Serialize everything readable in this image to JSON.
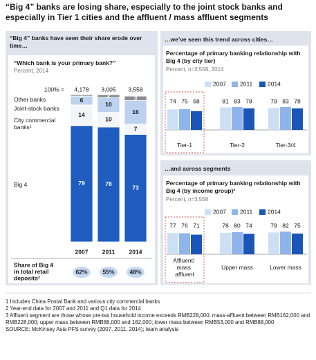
{
  "title": "“Big 4” banks are losing share, especially to the joint stock banks and especially in Tier 1 cities and the affluent / mass affluent segments",
  "panels": [
    "“Big 4” banks have seen their share erode over time…",
    "…we’ve seen this trend across cities…",
    "…and across segments"
  ],
  "footnotes": [
    "1 Includes China Postal Bank and various city commercial banks",
    "2 Year-end data for 2007 and 2011 and Q1 data for 2014",
    "3 Affluent segment are those whose pre-tax household income exceeds RMB228,000; mass-affluent between RMB162,000 and RMB228,000; upper mass between RMB88,000 and 162,000; lower mass between RMB53,000 and RMB88,000"
  ],
  "source": "SOURCE: McKinsey Asia PFS survey (2007, 2011, 2014); team analysis",
  "chart_data": [
    {
      "type": "stacked_bar",
      "title": "“Which bank is your primary bank?”",
      "subtitle": "Percent, 2014",
      "categories": [
        "2007",
        "2011",
        "2014"
      ],
      "ylim": [
        0,
        100
      ],
      "totals": {
        "label": "100% =",
        "values": [
          4178,
          3005,
          3558
        ],
        "value_labels": [
          "4,178",
          "3,005",
          "3,558"
        ]
      },
      "series": [
        {
          "name": "Big 4",
          "color": "#1f5cc0",
          "values": [
            79,
            78,
            73
          ]
        },
        {
          "name": "City commercial banks¹",
          "color": "#f3f5f8",
          "values": [
            14,
            10,
            7
          ]
        },
        {
          "name": "Joint-stock banks",
          "color": "#bcd2ef",
          "values": [
            6,
            10,
            16
          ]
        },
        {
          "name": "Other banks",
          "color": "#8a8d92",
          "values": [
            1,
            2,
            3
          ]
        }
      ],
      "share": {
        "label": "Share of Big 4 in total retail deposits²",
        "values": [
          62,
          55,
          48
        ],
        "value_labels": [
          "62%",
          "55%",
          "48%"
        ],
        "color": "#c3d8f2"
      }
    },
    {
      "type": "grouped_bar",
      "title": "Percentage of primary banking relationship with Big 4 (by city tier)",
      "subtitle": "Percent, n=3,558, 2014",
      "categories": [
        "Tier-1",
        "Tier-2",
        "Tier-3/4"
      ],
      "ylim": [
        0,
        100
      ],
      "highlight_index": 0,
      "legend": "top",
      "series": [
        {
          "name": "2007",
          "color": "#cddff5",
          "values": [
            74,
            81,
            79
          ]
        },
        {
          "name": "2011",
          "color": "#8fb4ea",
          "values": [
            75,
            83,
            83
          ]
        },
        {
          "name": "2014",
          "color": "#1b55b8",
          "values": [
            68,
            78,
            78
          ]
        }
      ]
    },
    {
      "type": "grouped_bar",
      "title": "Percentage of primary banking relationship with Big 4 (by income group)³",
      "subtitle": "Percent, n=3,558",
      "categories": [
        "Affluent/ mass affluent",
        "Upper mass",
        "Lower mass"
      ],
      "ylim": [
        0,
        100
      ],
      "highlight_index": 0,
      "legend": "top",
      "series": [
        {
          "name": "2007",
          "color": "#cddff5",
          "values": [
            77,
            78,
            79
          ]
        },
        {
          "name": "2011",
          "color": "#8fb4ea",
          "values": [
            76,
            80,
            82
          ]
        },
        {
          "name": "2014",
          "color": "#1b55b8",
          "values": [
            71,
            74,
            75
          ]
        }
      ]
    }
  ]
}
